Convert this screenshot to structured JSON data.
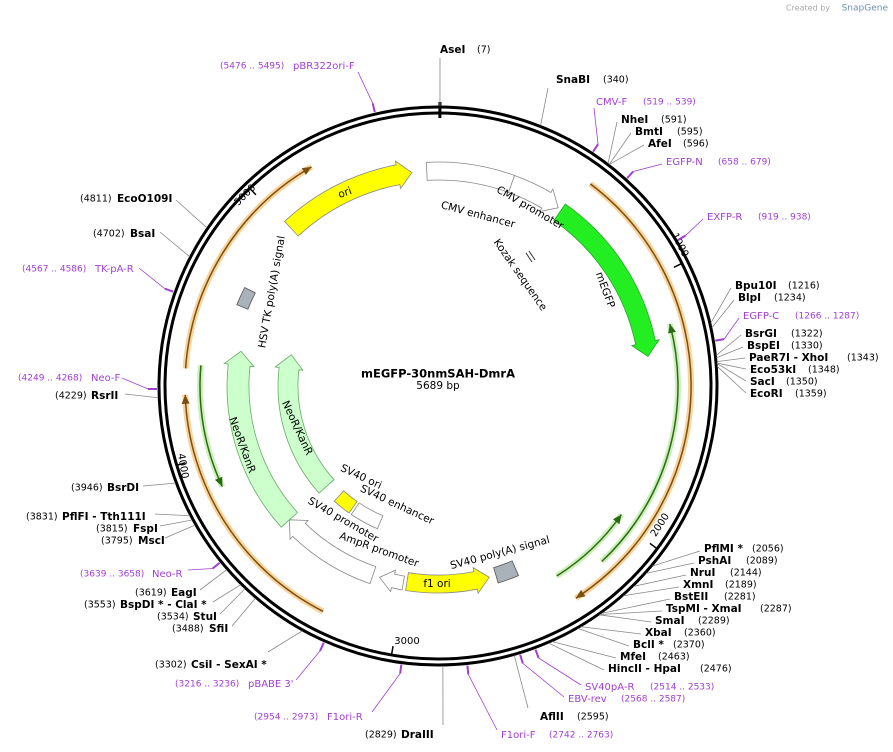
{
  "credit": {
    "prefix": "Created by",
    "brand": "SnapGene"
  },
  "map": {
    "title": "mEGFP-30nmSAH-DmrA",
    "length": "5689 bp",
    "ticks": [
      "1000",
      "2000",
      "3000",
      "4000",
      "5000"
    ]
  },
  "features": [
    "ori",
    "CMV enhancer",
    "CMV promoter",
    "Kozak sequence",
    "mEGFP",
    "HSV TK poly(A) signal",
    "NeoR/KanR",
    "NeoR/KanR",
    "SV40 ori",
    "SV40 enhancer",
    "SV40 promoter",
    "AmpR promoter",
    "f1 ori",
    "SV40 poly(A) signal"
  ],
  "enzymes": [
    {
      "name": "AseI",
      "site": "(7)"
    },
    {
      "name": "SnaBI",
      "site": "(340)"
    },
    {
      "name": "NheI",
      "site": "(591)"
    },
    {
      "name": "BmtI",
      "site": "(595)"
    },
    {
      "name": "AfeI",
      "site": "(596)"
    },
    {
      "name": "Bpu10I",
      "site": "(1216)"
    },
    {
      "name": "BlpI",
      "site": "(1234)"
    },
    {
      "name": "BsrGI",
      "site": "(1322)"
    },
    {
      "name": "BspEI",
      "site": "(1330)"
    },
    {
      "name": "PaeR7I - XhoI",
      "site": "(1343)"
    },
    {
      "name": "Eco53kI",
      "site": "(1348)"
    },
    {
      "name": "SacI",
      "site": "(1350)"
    },
    {
      "name": "EcoRI",
      "site": "(1359)"
    },
    {
      "name": "PflMI *",
      "site": "(2056)"
    },
    {
      "name": "PshAI",
      "site": "(2089)"
    },
    {
      "name": "NruI",
      "site": "(2144)"
    },
    {
      "name": "XmnI",
      "site": "(2189)"
    },
    {
      "name": "BstEII",
      "site": "(2281)"
    },
    {
      "name": "TspMI - XmaI",
      "site": "(2287)"
    },
    {
      "name": "SmaI",
      "site": "(2289)"
    },
    {
      "name": "XbaI",
      "site": "(2360)"
    },
    {
      "name": "BclI *",
      "site": "(2370)"
    },
    {
      "name": "MfeI",
      "site": "(2463)"
    },
    {
      "name": "HincII - HpaI",
      "site": "(2476)"
    },
    {
      "name": "AflII",
      "site": "(2595)"
    },
    {
      "name": "DraIII",
      "site": "(2829)"
    },
    {
      "name": "CsiI - SexAI *",
      "site": "(3302)"
    },
    {
      "name": "SfiI",
      "site": "(3488)"
    },
    {
      "name": "StuI",
      "site": "(3534)"
    },
    {
      "name": "BspDI * - ClaI *",
      "site": "(3553)"
    },
    {
      "name": "EagI",
      "site": "(3619)"
    },
    {
      "name": "MscI",
      "site": "(3795)"
    },
    {
      "name": "FspI",
      "site": "(3815)"
    },
    {
      "name": "PflFI - Tth111I",
      "site": "(3831)"
    },
    {
      "name": "BsrDI",
      "site": "(3946)"
    },
    {
      "name": "RsrII",
      "site": "(4229)"
    },
    {
      "name": "BsaI",
      "site": "(4702)"
    },
    {
      "name": "EcoO109I",
      "site": "(4811)"
    }
  ],
  "primers": [
    {
      "name": "pBR322ori-F",
      "site": "(5476 .. 5495)"
    },
    {
      "name": "CMV-F",
      "site": "(519 .. 539)"
    },
    {
      "name": "EGFP-N",
      "site": "(658 .. 679)"
    },
    {
      "name": "EXFP-R",
      "site": "(919 .. 938)"
    },
    {
      "name": "EGFP-C",
      "site": "(1266 .. 1287)"
    },
    {
      "name": "SV40pA-R",
      "site": "(2514 .. 2533)"
    },
    {
      "name": "EBV-rev",
      "site": "(2568 .. 2587)"
    },
    {
      "name": "F1ori-F",
      "site": "(2742 .. 2763)"
    },
    {
      "name": "F1ori-R",
      "site": "(2954 .. 2973)"
    },
    {
      "name": "pBABE 3'",
      "site": "(3216 .. 3236)"
    },
    {
      "name": "Neo-R",
      "site": "(3639 .. 3658)"
    },
    {
      "name": "Neo-F",
      "site": "(4249 .. 4268)"
    },
    {
      "name": "TK-pA-R",
      "site": "(4567 .. 4586)"
    }
  ]
}
